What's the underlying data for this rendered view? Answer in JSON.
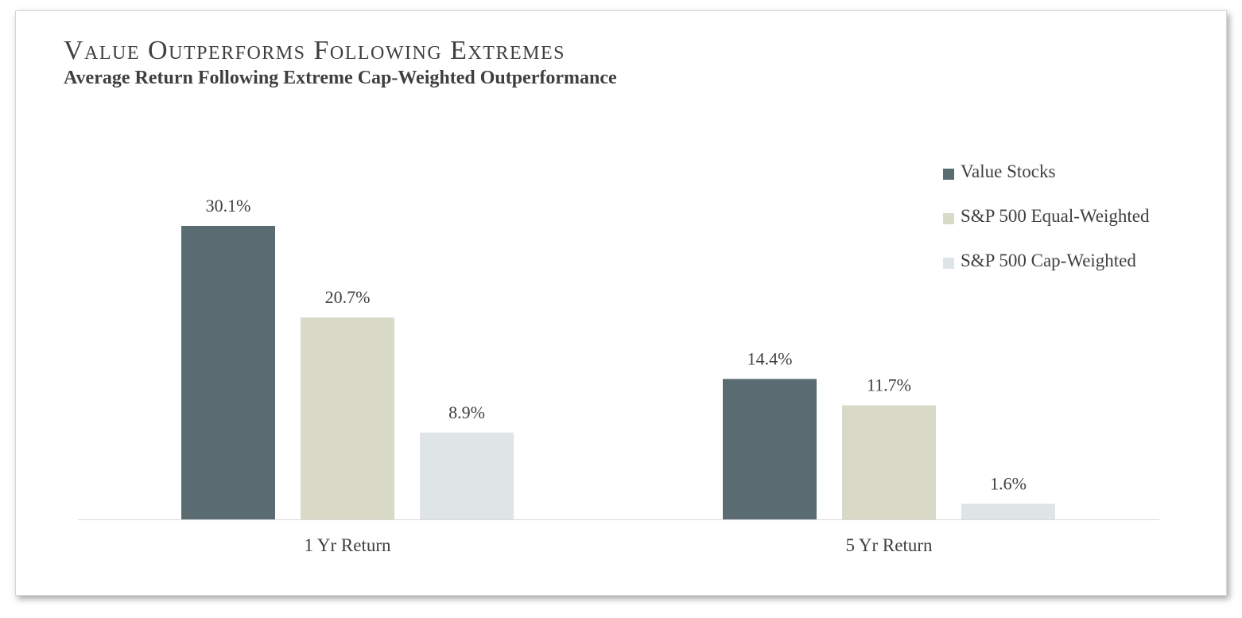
{
  "chart_data": {
    "type": "bar",
    "title": "Value Outperforms Following Extremes",
    "subtitle": "Average Return Following Extreme Cap-Weighted Outperformance",
    "categories": [
      "1 Yr Return",
      "5 Yr Return"
    ],
    "series": [
      {
        "name": "Value Stocks",
        "values": [
          30.1,
          14.4
        ],
        "labels": [
          "30.1%",
          "14.4%"
        ],
        "color": "#5a6b71"
      },
      {
        "name": "S&P 500 Equal-Weighted",
        "values": [
          20.7,
          11.7
        ],
        "labels": [
          "20.7%",
          "11.7%"
        ],
        "color": "#d8d9c6"
      },
      {
        "name": "S&P 500 Cap-Weighted",
        "values": [
          8.9,
          1.6
        ],
        "labels": [
          "8.9%",
          "1.6%"
        ],
        "color": "#dfe4e7"
      }
    ],
    "xlabel": "",
    "ylabel": "",
    "ylim": [
      0,
      30.1
    ],
    "grid": false,
    "legend": "right"
  }
}
